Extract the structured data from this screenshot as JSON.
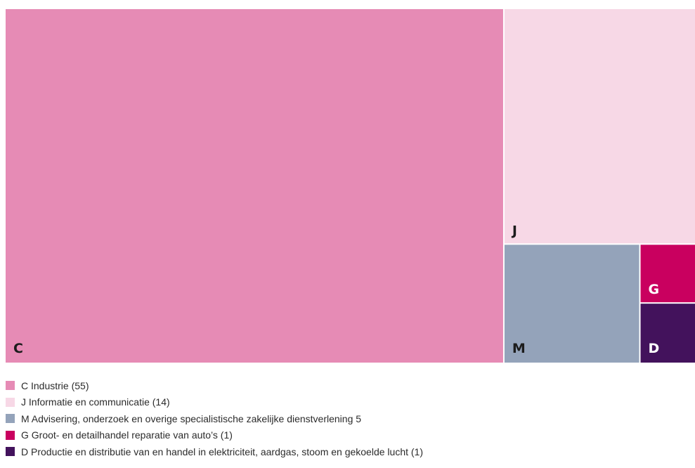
{
  "chart_data": {
    "type": "treemap",
    "title": "",
    "items": [
      {
        "code": "C",
        "legend": "C Industrie (55)",
        "value": 55,
        "color": "#e68bb5"
      },
      {
        "code": "J",
        "legend": "J Informatie en communicatie  (14)",
        "value": 14,
        "color": "#f7d8e6"
      },
      {
        "code": "M",
        "legend": "M Advisering, onderzoek en overige specialistische zakelijke dienstverlening  5",
        "value": 5,
        "color": "#94a3ba"
      },
      {
        "code": "G",
        "legend": "G Groot- en detailhandel reparatie van auto’s (1)",
        "value": 1,
        "color": "#c9005f"
      },
      {
        "code": "D",
        "legend": "D Productie en distributie van en handel in elektriciteit, aardgas, stoom en gekoelde lucht (1)",
        "value": 1,
        "color": "#43125c"
      }
    ]
  }
}
